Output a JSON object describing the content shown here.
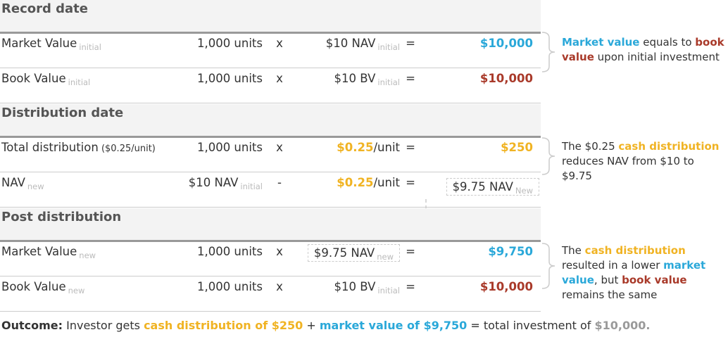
{
  "sections": [
    {
      "title": "Record date",
      "rows": [
        {
          "label": [
            {
              "text": "Market Value"
            },
            {
              "text": "initial",
              "kind": "sub"
            }
          ],
          "qty": [
            {
              "text": "1,000 units"
            }
          ],
          "op": "x",
          "rate": [
            {
              "text": "$10 NAV"
            },
            {
              "text": "initial",
              "kind": "sub"
            }
          ],
          "eq": "=",
          "result": [
            {
              "text": "$10,000",
              "color": "#2aa8d9",
              "bold": true
            }
          ]
        },
        {
          "label": [
            {
              "text": "Book Value"
            },
            {
              "text": "initial",
              "kind": "sub"
            }
          ],
          "qty": [
            {
              "text": "1,000 units"
            }
          ],
          "op": "x",
          "rate": [
            {
              "text": "$10 BV"
            },
            {
              "text": "initial",
              "kind": "sub"
            }
          ],
          "eq": "=",
          "result": [
            {
              "text": "$10,000",
              "color": "#a93a2a",
              "bold": true
            }
          ]
        }
      ],
      "note": [
        {
          "text": "Market value",
          "color": "#2aa8d9",
          "bold": true
        },
        {
          "text": " equals to "
        },
        {
          "text": "book value",
          "color": "#a93a2a",
          "bold": true
        },
        {
          "text": " upon initial investment"
        }
      ]
    },
    {
      "title": "Distribution date",
      "rows": [
        {
          "label": [
            {
              "text": "Total distribution"
            },
            {
              "text": " ($0.25/unit)",
              "kind": "small"
            }
          ],
          "qty": [
            {
              "text": "1,000 units"
            }
          ],
          "op": "x",
          "rate": [
            {
              "text": "$0.25",
              "color": "#f0b323",
              "bold": true
            },
            {
              "text": "/unit"
            }
          ],
          "eq": "=",
          "result": [
            {
              "text": "$250",
              "color": "#f0b323",
              "bold": true
            }
          ]
        },
        {
          "label": [
            {
              "text": "NAV"
            },
            {
              "text": "new",
              "kind": "sub"
            }
          ],
          "qty": [
            {
              "text": "$10 NAV"
            },
            {
              "text": "initial",
              "kind": "sub"
            }
          ],
          "op": "-",
          "rate": [
            {
              "text": "$0.25",
              "color": "#f0b323",
              "bold": true
            },
            {
              "text": "/unit"
            }
          ],
          "eq": "=",
          "result": [
            {
              "text": "$9.75 NAV"
            },
            {
              "text": "New",
              "kind": "sub"
            }
          ],
          "result_boxed": true
        }
      ],
      "note": [
        {
          "text": "The $0.25 "
        },
        {
          "text": "cash distribution",
          "color": "#f0b323",
          "bold": true
        },
        {
          "text": " reduces NAV from $10 to $9.75"
        }
      ]
    },
    {
      "title": "Post distribution",
      "rows": [
        {
          "label": [
            {
              "text": "Market Value"
            },
            {
              "text": "new",
              "kind": "sub"
            }
          ],
          "qty": [
            {
              "text": "1,000 units"
            }
          ],
          "op": "x",
          "rate": [
            {
              "text": "$9.75 NAV"
            },
            {
              "text": "new",
              "kind": "sub"
            }
          ],
          "rate_boxed": true,
          "eq": "=",
          "result": [
            {
              "text": "$9,750",
              "color": "#2aa8d9",
              "bold": true
            }
          ]
        },
        {
          "label": [
            {
              "text": "Book Value"
            },
            {
              "text": "new",
              "kind": "sub"
            }
          ],
          "qty": [
            {
              "text": "1,000 units"
            }
          ],
          "op": "x",
          "rate": [
            {
              "text": "$10 BV"
            },
            {
              "text": "initial",
              "kind": "sub"
            }
          ],
          "eq": "=",
          "result": [
            {
              "text": "$10,000",
              "color": "#a93a2a",
              "bold": true
            }
          ]
        }
      ],
      "note": [
        {
          "text": "The "
        },
        {
          "text": "cash distribution",
          "color": "#f0b323",
          "bold": true
        },
        {
          "text": " resulted in a lower "
        },
        {
          "text": "market value",
          "color": "#2aa8d9",
          "bold": true
        },
        {
          "text": ", but "
        },
        {
          "text": "book value",
          "color": "#a93a2a",
          "bold": true
        },
        {
          "text": " remains the same"
        }
      ]
    }
  ],
  "outcome": [
    {
      "text": "Outcome:",
      "bold": true
    },
    {
      "text": " Investor gets "
    },
    {
      "text": "cash distribution of $250",
      "color": "#f0b323",
      "bold": true
    },
    {
      "text": " + "
    },
    {
      "text": "market value of $9,750",
      "color": "#2aa8d9",
      "bold": true
    },
    {
      "text": " = total investment of "
    },
    {
      "text": "$10,000.",
      "color": "#9a9a9a",
      "bold": true
    }
  ]
}
